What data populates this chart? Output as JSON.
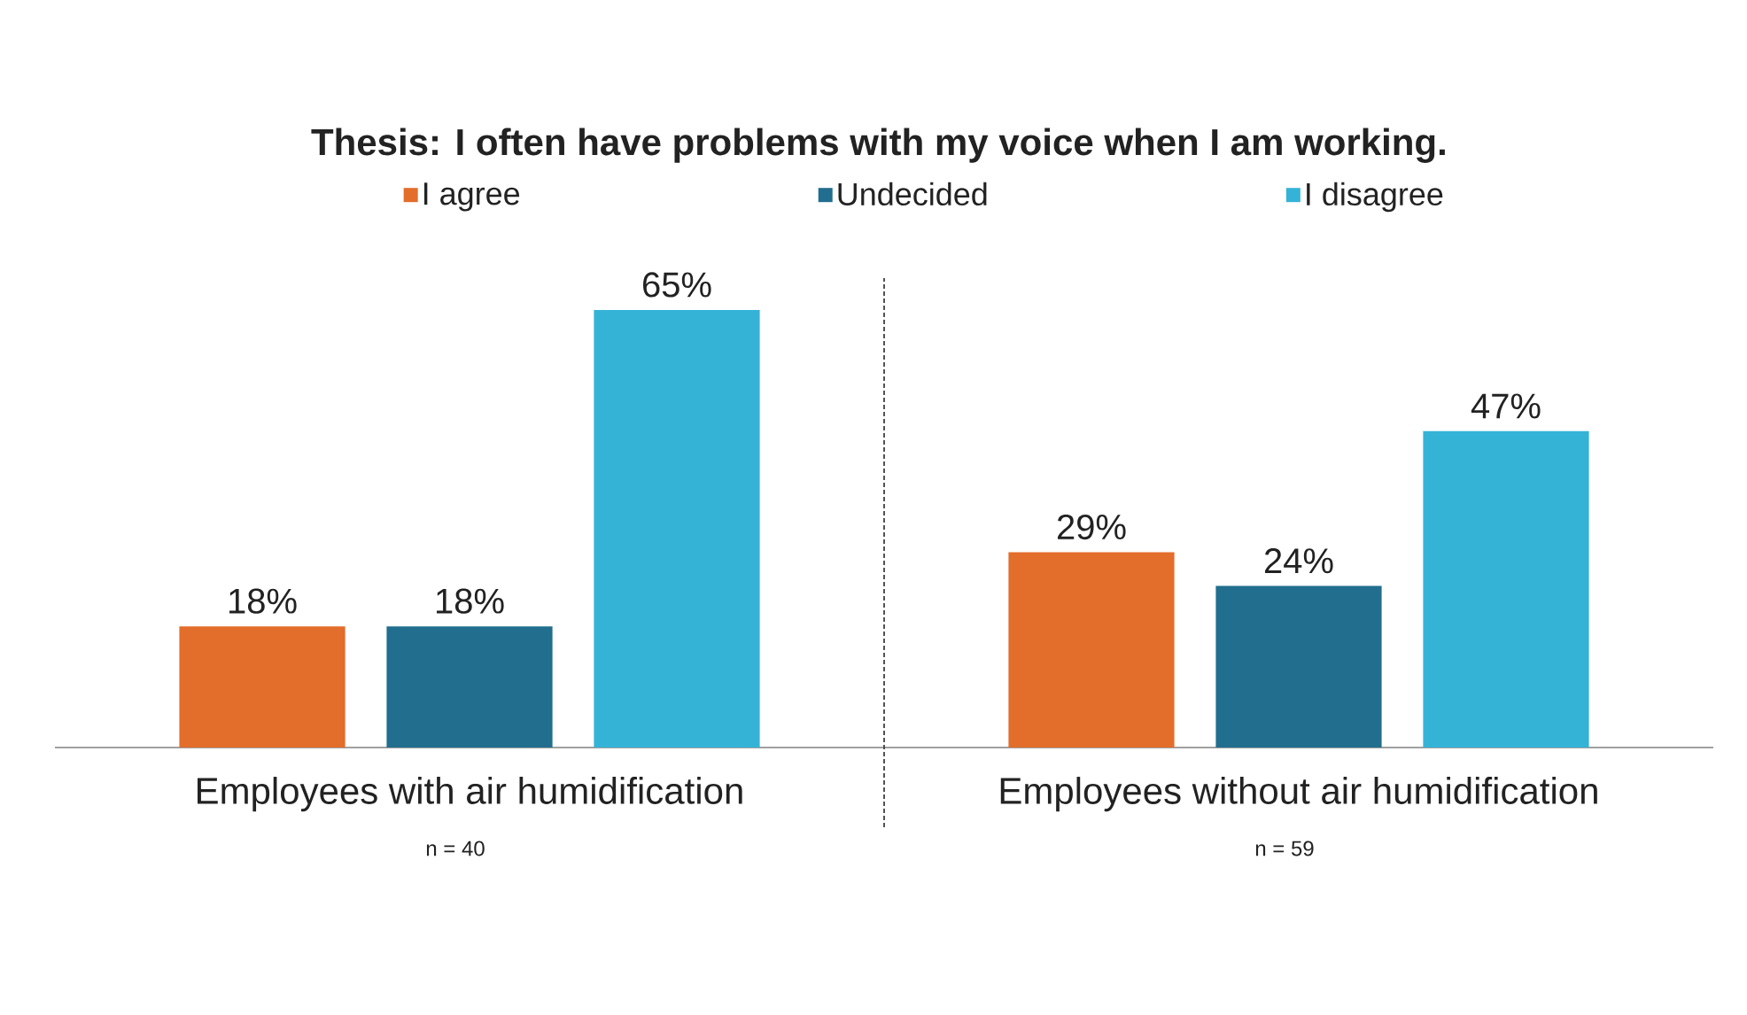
{
  "chart_data": {
    "type": "bar",
    "title": "Thesis: I often have problems with my voice when I am working.",
    "categories": [
      "Employees with air humidification",
      "Employees without air humidification"
    ],
    "series": [
      {
        "name": "I agree",
        "color": "#e36d2a",
        "values": [
          18,
          29
        ],
        "value_labels": [
          "18%",
          "29%"
        ]
      },
      {
        "name": "Undecided",
        "color": "#216e8e",
        "values": [
          18,
          24
        ],
        "value_labels": [
          "18%",
          "24%"
        ]
      },
      {
        "name": "I disagree",
        "color": "#35b3d7",
        "values": [
          65,
          47
        ],
        "value_labels": [
          "65%",
          "47%"
        ]
      }
    ],
    "legend": "top",
    "annotations": [
      "n = 40",
      "n = 59"
    ]
  }
}
